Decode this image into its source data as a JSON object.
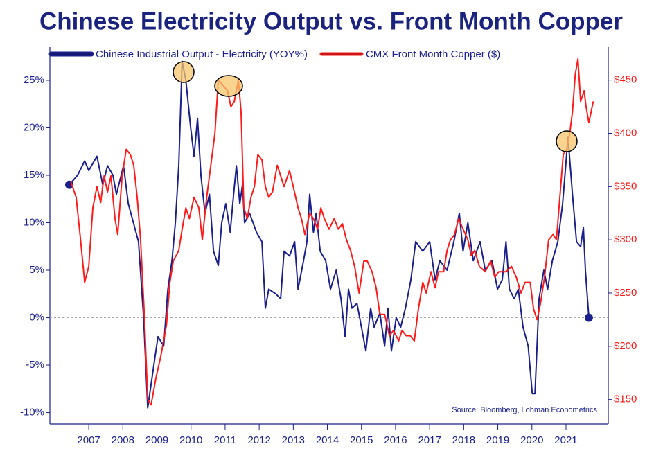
{
  "chart_data": {
    "type": "line",
    "title": "Chinese Electricity Output vs. Front Month Copper",
    "annotation": "Source: Bloomberg, Lohman Econometrics",
    "xlim": [
      2005.86,
      2022.24
    ],
    "xticks": [
      2007,
      2008,
      2009,
      2010,
      2011,
      2012,
      2013,
      2014,
      2015,
      2016,
      2017,
      2018,
      2019,
      2020,
      2021
    ],
    "ylim": [
      -11.2,
      28.5
    ],
    "yticks": [
      {
        "value": -10,
        "label": "-10%"
      },
      {
        "value": -5,
        "label": "-5%"
      },
      {
        "value": 0,
        "label": "0%"
      },
      {
        "value": 5,
        "label": "5%"
      },
      {
        "value": 10,
        "label": "10%"
      },
      {
        "value": 15,
        "label": "15%"
      },
      {
        "value": 20,
        "label": "20%"
      },
      {
        "value": 25,
        "label": "25%"
      }
    ],
    "y2lim": [
      127,
      481
    ],
    "y2ticks": [
      {
        "value": 150,
        "label": "$150"
      },
      {
        "value": 200,
        "label": "$200"
      },
      {
        "value": 250,
        "label": "$250"
      },
      {
        "value": 300,
        "label": "$300"
      },
      {
        "value": 350,
        "label": "$350"
      },
      {
        "value": 400,
        "label": "$400"
      },
      {
        "value": 450,
        "label": "$450"
      }
    ],
    "zero_line": true,
    "legend": "top-left",
    "series": [
      {
        "name": "Chinese Industrial Output - Electricity (YOY%)",
        "color": "#1a1f8c",
        "endpoint_markers": true,
        "x": [
          2006.43,
          2006.67,
          2006.88,
          2007.0,
          2007.24,
          2007.41,
          2007.55,
          2007.71,
          2007.81,
          2008.02,
          2008.16,
          2008.46,
          2008.61,
          2008.73,
          2008.87,
          2009.03,
          2009.2,
          2009.32,
          2009.44,
          2009.54,
          2009.64,
          2009.74,
          2009.85,
          2009.99,
          2010.09,
          2010.19,
          2010.29,
          2010.41,
          2010.54,
          2010.66,
          2010.8,
          2010.9,
          2011.02,
          2011.15,
          2011.25,
          2011.33,
          2011.43,
          2011.51,
          2011.57,
          2011.72,
          2011.92,
          2012.08,
          2012.18,
          2012.28,
          2012.49,
          2012.63,
          2012.73,
          2012.89,
          2013.04,
          2013.14,
          2013.3,
          2013.4,
          2013.48,
          2013.59,
          2013.67,
          2013.79,
          2013.95,
          2014.09,
          2014.26,
          2014.4,
          2014.52,
          2014.62,
          2014.72,
          2014.87,
          2015.13,
          2015.27,
          2015.37,
          2015.54,
          2015.68,
          2015.78,
          2015.88,
          2016.02,
          2016.15,
          2016.29,
          2016.45,
          2016.59,
          2016.8,
          2017.0,
          2017.16,
          2017.3,
          2017.51,
          2017.71,
          2017.87,
          2017.98,
          2018.12,
          2018.28,
          2018.48,
          2018.63,
          2018.83,
          2018.99,
          2019.13,
          2019.24,
          2019.34,
          2019.48,
          2019.6,
          2019.74,
          2019.89,
          2020.01,
          2020.09,
          2020.21,
          2020.35,
          2020.46,
          2020.6,
          2020.76,
          2020.9,
          2021.06,
          2021.19,
          2021.31,
          2021.43,
          2021.51,
          2021.57,
          2021.67
        ],
        "values": [
          14,
          15,
          16.5,
          15.5,
          17,
          14,
          16,
          15,
          13,
          16,
          12,
          8,
          0,
          -9.5,
          -6,
          -2,
          -3,
          3,
          6,
          10,
          16,
          27,
          25,
          20,
          17,
          21,
          15,
          11,
          13,
          7,
          5.5,
          10,
          12,
          9,
          13,
          16,
          12,
          14,
          10,
          11,
          9,
          8,
          1,
          3,
          2.5,
          2,
          7,
          6.5,
          8,
          3,
          6,
          8,
          13,
          9,
          11,
          7,
          6,
          3,
          5,
          2,
          -2,
          3,
          1,
          1.5,
          -3.5,
          1,
          -1,
          0.5,
          -3,
          1,
          -3.5,
          0,
          -1,
          1,
          4,
          8,
          7,
          8,
          4,
          6,
          5,
          8,
          11,
          7,
          10,
          6,
          8,
          5,
          6,
          3,
          4,
          8,
          3,
          2,
          3,
          -1,
          -3,
          -8,
          -8,
          2,
          5,
          3,
          6,
          8,
          12,
          19,
          13,
          8,
          7.5,
          9.5,
          5,
          0
        ]
      },
      {
        "name": "CMX Front Month Copper ($)",
        "color": "#ff1a1a",
        "axis": "y2",
        "x": [
          2006.47,
          2006.63,
          2006.76,
          2006.88,
          2007.0,
          2007.12,
          2007.24,
          2007.35,
          2007.45,
          2007.55,
          2007.65,
          2007.77,
          2007.85,
          2007.98,
          2008.1,
          2008.22,
          2008.32,
          2008.42,
          2008.52,
          2008.63,
          2008.73,
          2008.83,
          2008.97,
          2009.11,
          2009.28,
          2009.38,
          2009.48,
          2009.64,
          2009.74,
          2009.85,
          2009.95,
          2010.09,
          2010.23,
          2010.33,
          2010.46,
          2010.58,
          2010.7,
          2010.8,
          2010.94,
          2011.07,
          2011.17,
          2011.27,
          2011.39,
          2011.47,
          2011.55,
          2011.65,
          2011.76,
          2011.86,
          2011.96,
          2012.08,
          2012.18,
          2012.28,
          2012.39,
          2012.53,
          2012.63,
          2012.73,
          2012.89,
          2013.0,
          2013.14,
          2013.24,
          2013.34,
          2013.48,
          2013.59,
          2013.71,
          2013.81,
          2013.91,
          2014.05,
          2014.2,
          2014.32,
          2014.44,
          2014.56,
          2014.68,
          2014.8,
          2014.93,
          2015.07,
          2015.17,
          2015.31,
          2015.43,
          2015.54,
          2015.68,
          2015.82,
          2015.94,
          2016.09,
          2016.19,
          2016.31,
          2016.43,
          2016.55,
          2016.67,
          2016.8,
          2016.9,
          2017.04,
          2017.16,
          2017.26,
          2017.41,
          2017.51,
          2017.61,
          2017.73,
          2017.85,
          2017.98,
          2018.12,
          2018.22,
          2018.32,
          2018.46,
          2018.63,
          2018.79,
          2018.91,
          2019.03,
          2019.24,
          2019.4,
          2019.54,
          2019.68,
          2019.8,
          2019.95,
          2020.05,
          2020.15,
          2020.25,
          2020.37,
          2020.49,
          2020.62,
          2020.72,
          2020.82,
          2020.92,
          2021.02,
          2021.11,
          2021.19,
          2021.27,
          2021.35,
          2021.43,
          2021.53,
          2021.59,
          2021.67,
          2021.8
        ],
        "values": [
          355,
          340,
          300,
          260,
          275,
          330,
          350,
          335,
          360,
          345,
          360,
          320,
          305,
          360,
          385,
          380,
          370,
          340,
          300,
          230,
          150,
          145,
          170,
          190,
          220,
          260,
          280,
          290,
          310,
          330,
          320,
          340,
          330,
          300,
          340,
          370,
          400,
          450,
          445,
          440,
          425,
          430,
          450,
          420,
          330,
          320,
          340,
          350,
          380,
          375,
          350,
          340,
          345,
          370,
          360,
          350,
          365,
          350,
          330,
          320,
          305,
          325,
          320,
          310,
          330,
          320,
          310,
          320,
          310,
          315,
          300,
          290,
          275,
          250,
          280,
          280,
          270,
          255,
          230,
          230,
          210,
          215,
          205,
          215,
          210,
          210,
          205,
          235,
          260,
          250,
          270,
          255,
          270,
          270,
          290,
          300,
          305,
          320,
          310,
          300,
          285,
          290,
          275,
          270,
          280,
          265,
          270,
          270,
          275,
          265,
          250,
          260,
          260,
          235,
          225,
          240,
          265,
          300,
          305,
          300,
          340,
          380,
          385,
          400,
          420,
          455,
          470,
          430,
          440,
          425,
          410,
          430
        ]
      }
    ]
  }
}
